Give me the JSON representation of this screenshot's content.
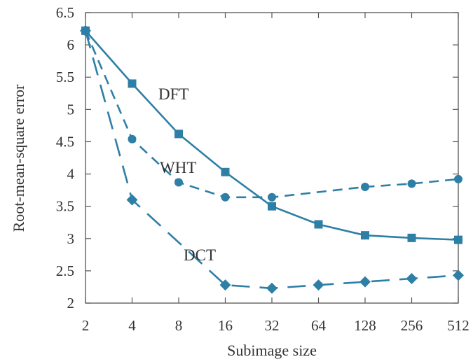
{
  "chart_data": {
    "type": "line",
    "xlabel": "Subimage size",
    "ylabel": "Root-mean-square error",
    "x_scale": "log2",
    "categories": [
      "2",
      "4",
      "8",
      "16",
      "32",
      "64",
      "128",
      "256",
      "512"
    ],
    "x": [
      2,
      4,
      8,
      16,
      32,
      64,
      128,
      256,
      512
    ],
    "ylim": [
      2,
      6.5
    ],
    "yticks": [
      2,
      2.5,
      3,
      3.5,
      4,
      4.5,
      5,
      5.5,
      6,
      6.5
    ],
    "ytick_labels": [
      "2",
      "2.5",
      "3",
      "3.5",
      "4",
      "4.5",
      "5",
      "5.5",
      "6",
      "6.5"
    ],
    "grid": false,
    "legend": "inline labels",
    "color": "#2e7fa6",
    "series": [
      {
        "name": "DFT",
        "marker": "square",
        "line": "solid",
        "values": [
          6.22,
          5.4,
          4.62,
          4.03,
          3.5,
          3.22,
          3.05,
          3.01,
          2.98
        ]
      },
      {
        "name": "WHT",
        "marker": "circle",
        "line": "dashed",
        "values": [
          6.22,
          4.54,
          3.87,
          3.64,
          3.64,
          null,
          3.8,
          3.85,
          3.92
        ]
      },
      {
        "name": "DCT",
        "marker": "diamond",
        "line": "long-dashed",
        "values": [
          6.22,
          3.6,
          null,
          2.28,
          2.23,
          2.28,
          2.33,
          2.38,
          2.43
        ]
      }
    ]
  }
}
